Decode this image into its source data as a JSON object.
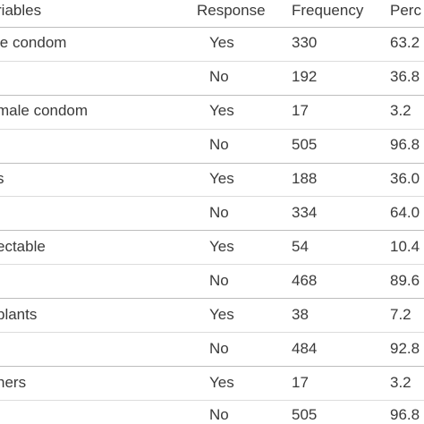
{
  "header": {
    "variables": "riables",
    "response": "Response",
    "frequency": "Frequency",
    "percent": "Perc"
  },
  "rows": [
    {
      "variable": "le condom",
      "response": "Yes",
      "frequency": "330",
      "percent": "63.2"
    },
    {
      "variable": "",
      "response": "No",
      "frequency": "192",
      "percent": "36.8"
    },
    {
      "variable": "male condom",
      "response": "Yes",
      "frequency": "17",
      "percent": "3.2"
    },
    {
      "variable": "",
      "response": "No",
      "frequency": "505",
      "percent": "96.8"
    },
    {
      "variable": "s",
      "response": "Yes",
      "frequency": "188",
      "percent": "36.0"
    },
    {
      "variable": "",
      "response": "No",
      "frequency": "334",
      "percent": "64.0"
    },
    {
      "variable": "ectable",
      "response": "Yes",
      "frequency": "54",
      "percent": "10.4"
    },
    {
      "variable": "",
      "response": "No",
      "frequency": "468",
      "percent": "89.6"
    },
    {
      "variable": "plants",
      "response": "Yes",
      "frequency": "38",
      "percent": "7.2"
    },
    {
      "variable": "",
      "response": "No",
      "frequency": "484",
      "percent": "92.8"
    },
    {
      "variable": "hers",
      "response": "Yes",
      "frequency": "17",
      "percent": "3.2"
    },
    {
      "variable": "",
      "response": "No",
      "frequency": "505",
      "percent": "96.8"
    }
  ]
}
